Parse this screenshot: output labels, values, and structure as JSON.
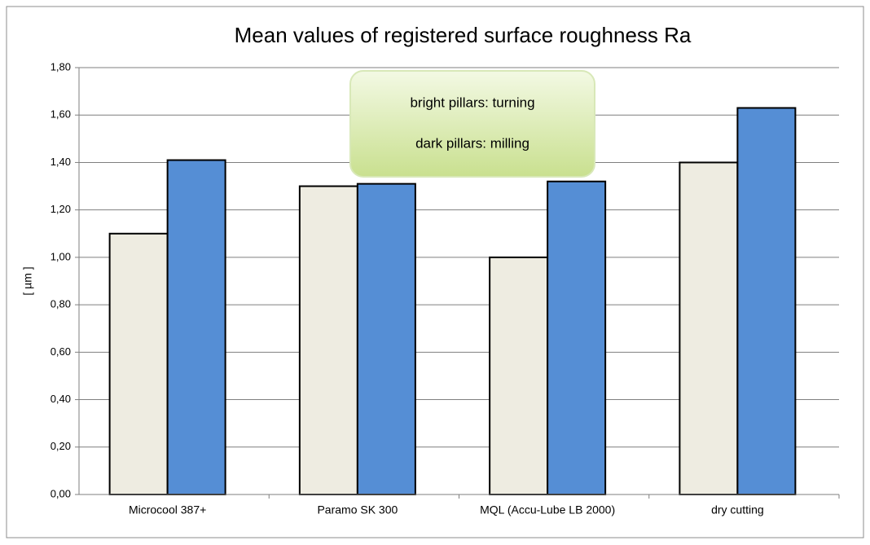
{
  "chart_data": {
    "type": "bar",
    "title": "Mean values of registered surface roughness Ra",
    "y_label": "[ µm ]",
    "categories": [
      "Microcool 387+",
      "Paramo SK 300",
      "MQL (Accu-Lube LB 2000)",
      "dry cutting"
    ],
    "series": [
      {
        "color": "#eeece1",
        "values": [
          1.1,
          1.3,
          1.0,
          1.4
        ]
      },
      {
        "color": "#558ed5",
        "values": [
          1.41,
          1.31,
          1.32,
          1.63
        ]
      }
    ],
    "annotations": [
      "bright pillars: turning",
      "dark pillars: milling"
    ],
    "ylim": [
      0,
      1.8
    ],
    "yticks": [
      {
        "value": 0,
        "label": "0,00"
      },
      {
        "value": 0.2,
        "label": "0,20"
      },
      {
        "value": 0.4,
        "label": "0,40"
      },
      {
        "value": 0.6,
        "label": "0,60"
      },
      {
        "value": 0.8,
        "label": "0,80"
      },
      {
        "value": 1.0,
        "label": "1,00"
      },
      {
        "value": 1.2,
        "label": "1,20"
      },
      {
        "value": 1.4,
        "label": "1,40"
      },
      {
        "value": 1.6,
        "label": "1,60"
      },
      {
        "value": 1.8,
        "label": "1,80"
      }
    ],
    "grid": true
  }
}
